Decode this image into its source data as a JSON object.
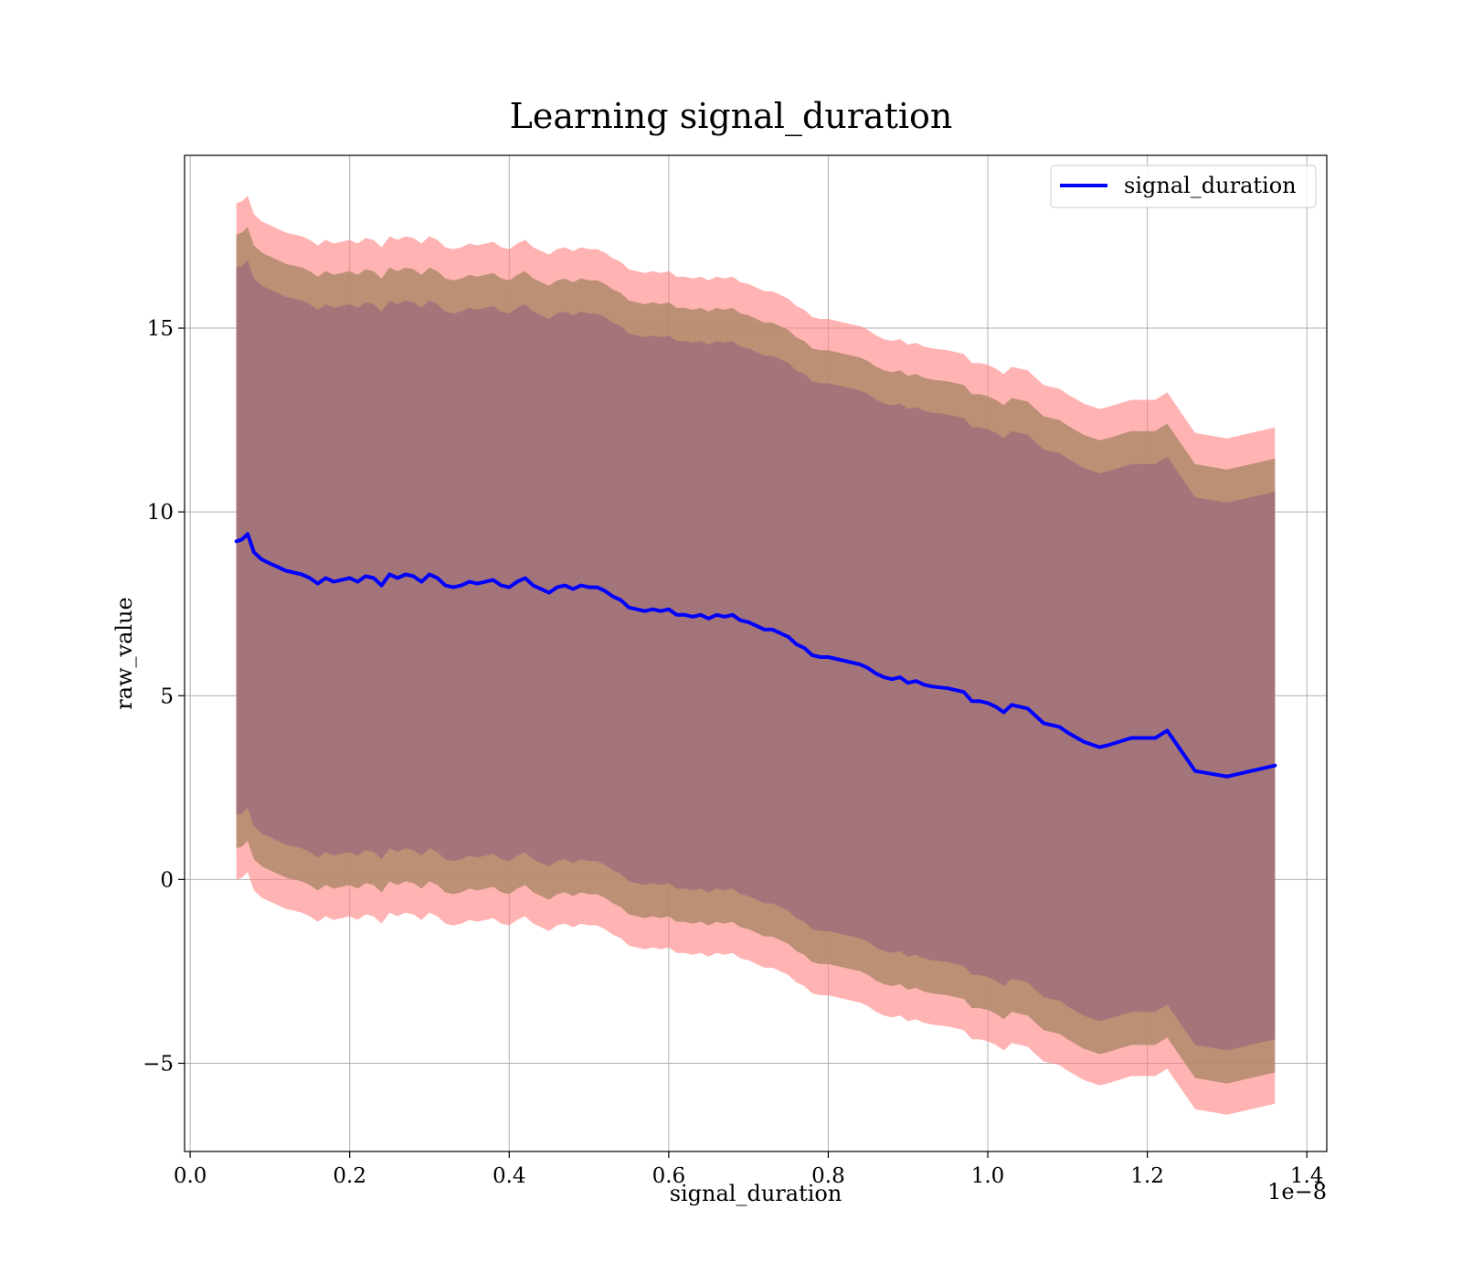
{
  "chart_data": {
    "type": "line",
    "title": "Learning signal_duration",
    "xlabel": "signal_duration",
    "ylabel": "raw_value",
    "x_offset_label": "1e−8",
    "xlim": [
      -0.007,
      1.425
    ],
    "ylim": [
      -7.4,
      19.7
    ],
    "x_ticks": [
      0.0,
      0.2,
      0.4,
      0.6,
      0.8,
      1.0,
      1.2,
      1.4
    ],
    "x_tick_labels": [
      "0.0",
      "0.2",
      "0.4",
      "0.6",
      "0.8",
      "1.0",
      "1.2",
      "1.4"
    ],
    "y_ticks": [
      -5,
      0,
      5,
      10,
      15
    ],
    "y_tick_labels": [
      "−5",
      "0",
      "5",
      "10",
      "15"
    ],
    "grid": true,
    "legend_position": "top-right",
    "colors": {
      "line": "#0000ff",
      "band_outer": "#ff8080",
      "band_middle": "#b08a6a",
      "band_inner": "#a0717a"
    },
    "series": [
      {
        "name": "signal_duration",
        "x": [
          0.058,
          0.065,
          0.072,
          0.08,
          0.09,
          0.1,
          0.11,
          0.12,
          0.13,
          0.14,
          0.15,
          0.16,
          0.17,
          0.18,
          0.19,
          0.2,
          0.21,
          0.22,
          0.23,
          0.24,
          0.25,
          0.26,
          0.27,
          0.28,
          0.29,
          0.3,
          0.31,
          0.32,
          0.33,
          0.34,
          0.35,
          0.36,
          0.37,
          0.38,
          0.39,
          0.4,
          0.41,
          0.42,
          0.43,
          0.44,
          0.45,
          0.46,
          0.47,
          0.48,
          0.49,
          0.5,
          0.51,
          0.52,
          0.53,
          0.54,
          0.55,
          0.56,
          0.57,
          0.58,
          0.59,
          0.6,
          0.61,
          0.62,
          0.63,
          0.64,
          0.65,
          0.66,
          0.67,
          0.68,
          0.69,
          0.7,
          0.71,
          0.72,
          0.73,
          0.74,
          0.75,
          0.76,
          0.77,
          0.78,
          0.79,
          0.8,
          0.81,
          0.82,
          0.83,
          0.84,
          0.85,
          0.86,
          0.87,
          0.88,
          0.89,
          0.9,
          0.91,
          0.92,
          0.93,
          0.95,
          0.97,
          0.98,
          0.99,
          1.0,
          1.01,
          1.02,
          1.03,
          1.04,
          1.05,
          1.07,
          1.09,
          1.1,
          1.12,
          1.14,
          1.15,
          1.18,
          1.21,
          1.225,
          1.26,
          1.3,
          1.36
        ],
        "y": [
          9.2,
          9.25,
          9.4,
          8.9,
          8.7,
          8.6,
          8.5,
          8.4,
          8.35,
          8.3,
          8.2,
          8.05,
          8.2,
          8.1,
          8.15,
          8.2,
          8.1,
          8.25,
          8.2,
          8.0,
          8.3,
          8.2,
          8.3,
          8.25,
          8.1,
          8.3,
          8.2,
          8.0,
          7.95,
          8.0,
          8.1,
          8.05,
          8.1,
          8.15,
          8.0,
          7.95,
          8.1,
          8.2,
          8.0,
          7.9,
          7.8,
          7.95,
          8.0,
          7.9,
          8.0,
          7.95,
          7.95,
          7.85,
          7.7,
          7.6,
          7.4,
          7.35,
          7.3,
          7.35,
          7.3,
          7.35,
          7.2,
          7.2,
          7.15,
          7.2,
          7.1,
          7.2,
          7.15,
          7.2,
          7.05,
          7.0,
          6.9,
          6.8,
          6.8,
          6.7,
          6.6,
          6.4,
          6.3,
          6.1,
          6.05,
          6.05,
          6.0,
          5.95,
          5.9,
          5.85,
          5.75,
          5.6,
          5.5,
          5.45,
          5.5,
          5.35,
          5.4,
          5.3,
          5.25,
          5.2,
          5.1,
          4.85,
          4.85,
          4.8,
          4.7,
          4.55,
          4.75,
          4.7,
          4.65,
          4.25,
          4.15,
          4.0,
          3.75,
          3.6,
          3.65,
          3.85,
          3.85,
          4.05,
          2.95,
          2.8,
          3.1
        ]
      }
    ],
    "bands": [
      {
        "offset": 9.2,
        "color_key": "band_outer",
        "opacity": 0.6
      },
      {
        "offset": 8.35,
        "color_key": "band_middle",
        "opacity": 0.85
      },
      {
        "offset": 7.45,
        "color_key": "band_inner",
        "opacity": 0.9
      }
    ]
  }
}
